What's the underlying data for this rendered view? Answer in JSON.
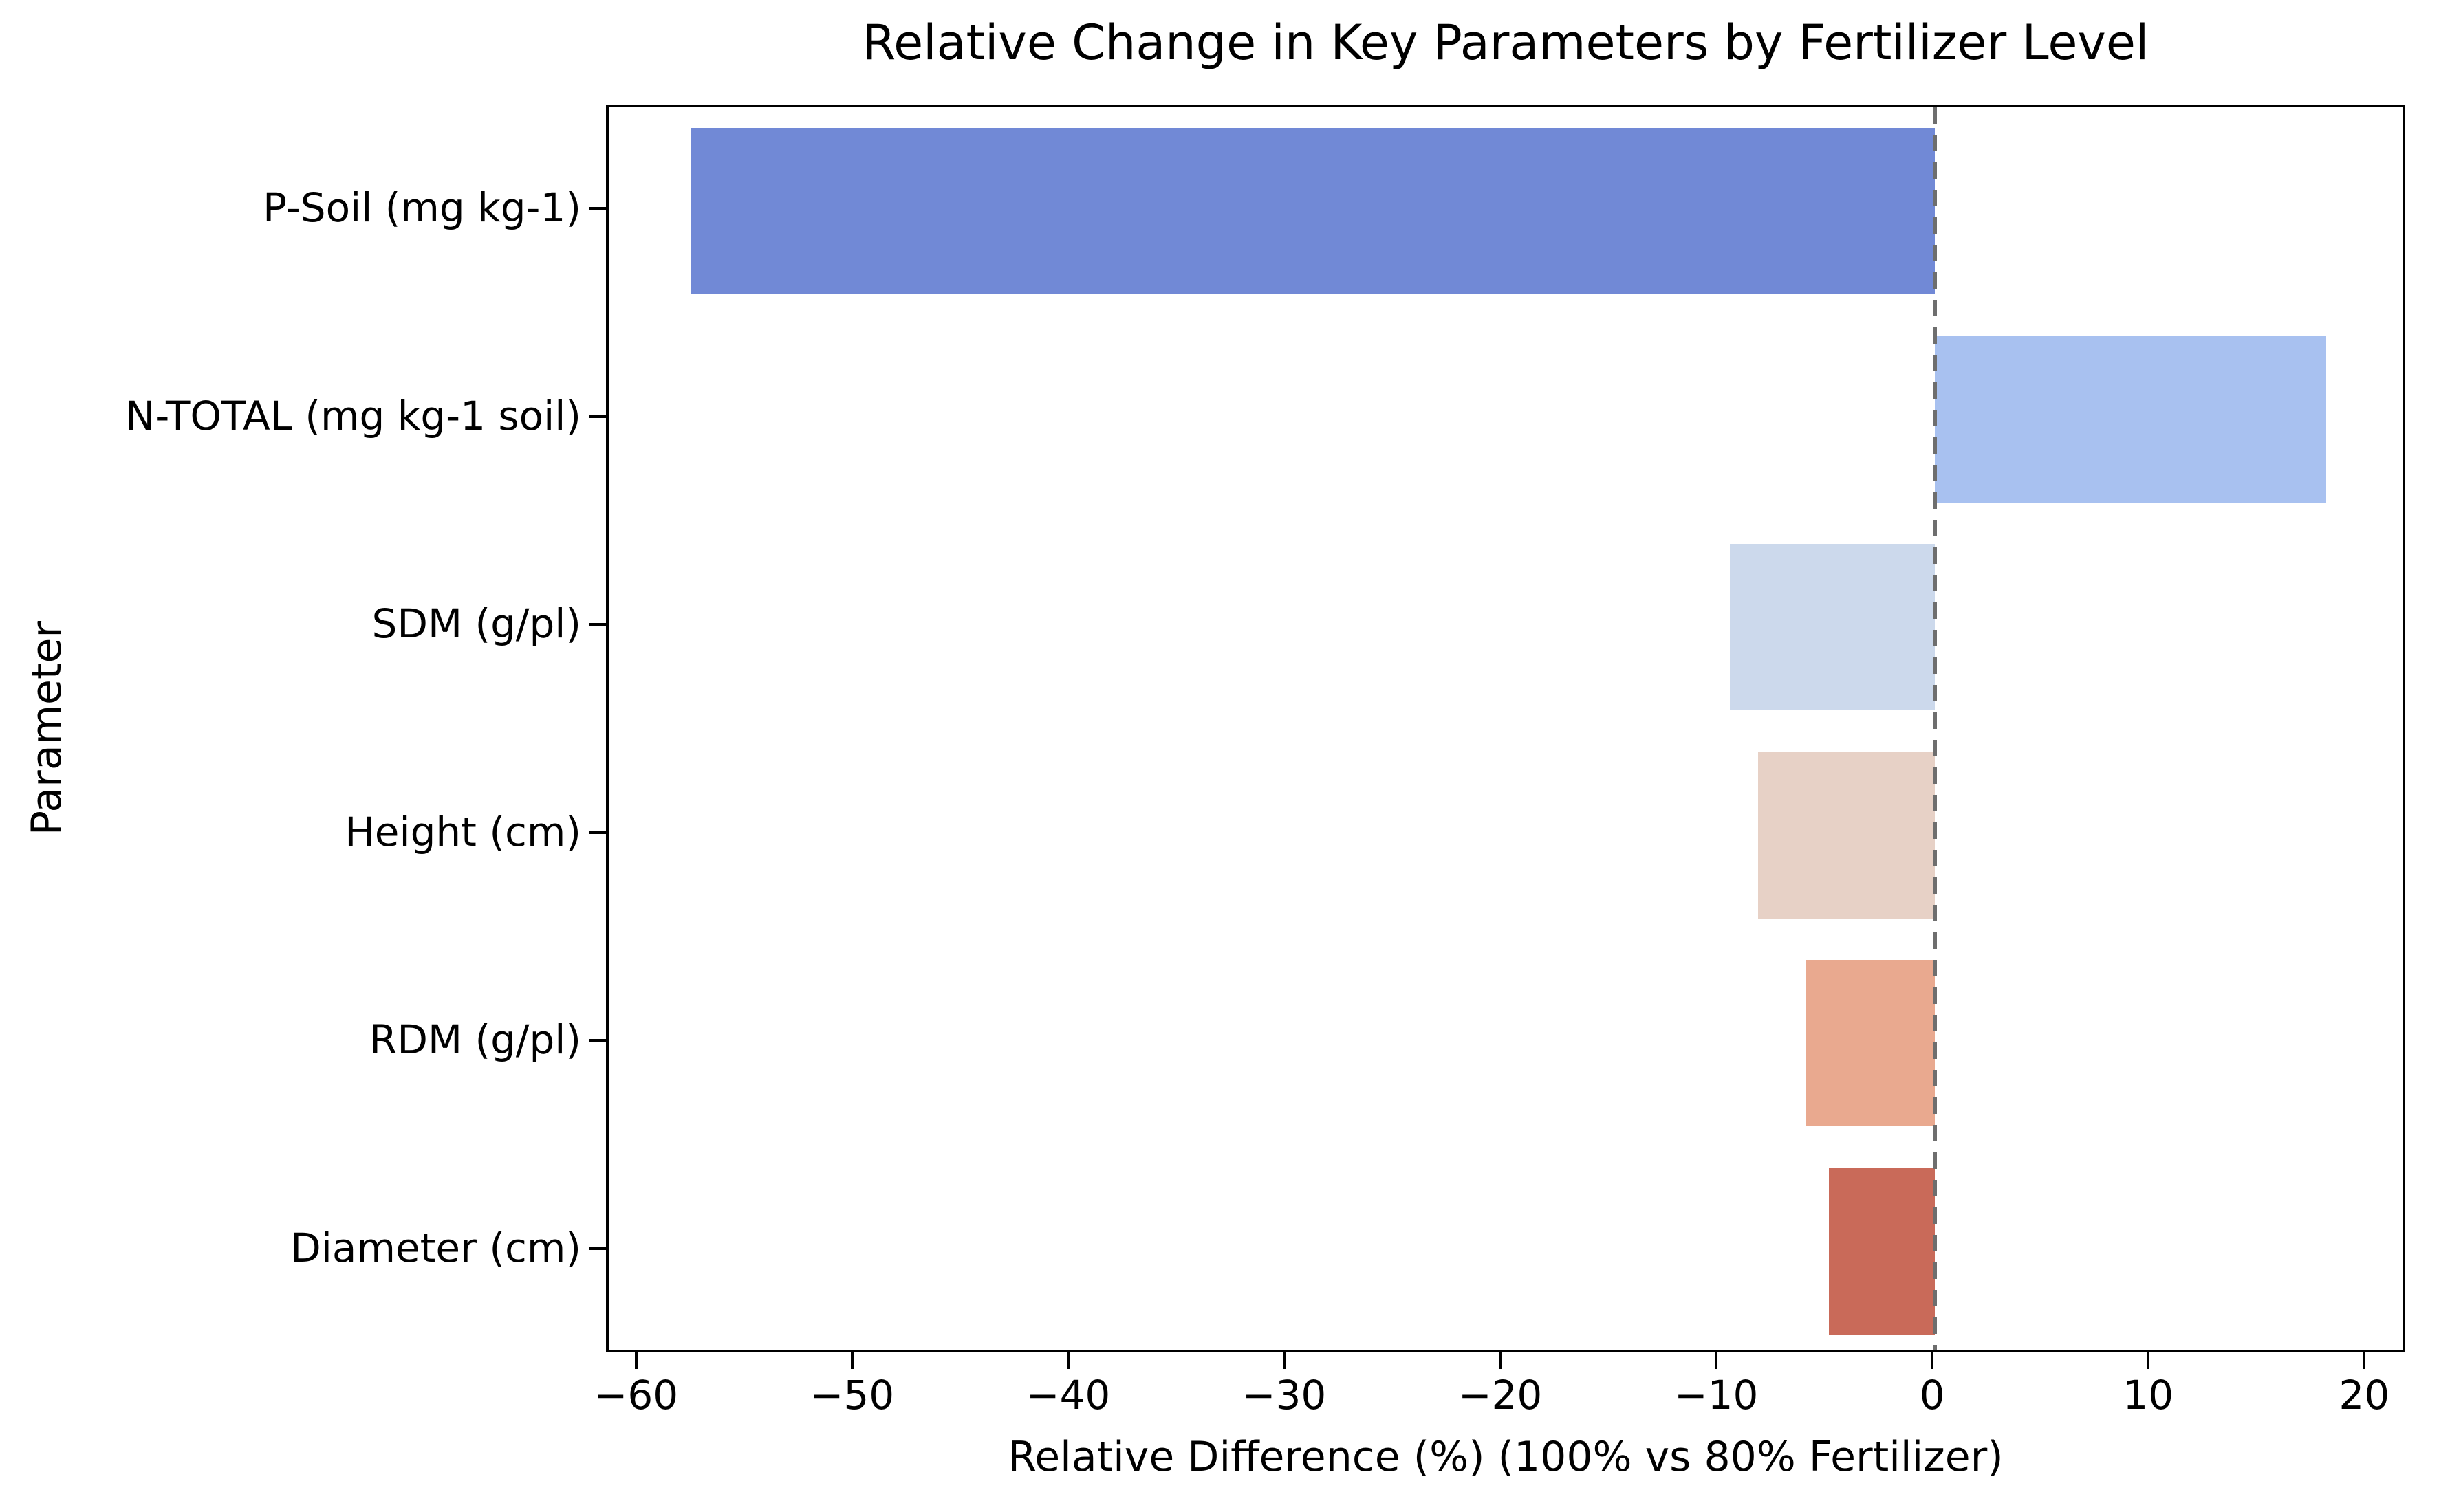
{
  "chart_data": {
    "type": "bar",
    "orientation": "horizontal",
    "title": "Relative Change in Key Parameters by Fertilizer Level",
    "xlabel": "Relative Difference (%) (100% vs 80% Fertilizer)",
    "ylabel": "Parameter",
    "categories": [
      "P-Soil (mg kg-1)",
      "N-TOTAL (mg kg-1 soil)",
      "SDM (g/pl)",
      "Height (cm)",
      "RDM (g/pl)",
      "Diameter (cm)"
    ],
    "values": [
      -57.6,
      18.1,
      -9.5,
      -8.2,
      -6.0,
      -4.9
    ],
    "bar_colors": [
      "#7189d6",
      "#a8c1f0",
      "#ccd9ec",
      "#e7d1c6",
      "#e9a98f",
      "#c96a59"
    ],
    "xlim": [
      -61.4,
      21.9
    ],
    "xticks": [
      -60,
      -50,
      -40,
      -30,
      -20,
      -10,
      0,
      10,
      20
    ],
    "xtick_labels": [
      "−60",
      "−50",
      "−40",
      "−30",
      "−20",
      "−10",
      "0",
      "10",
      "20"
    ],
    "zero_line": {
      "x": 0,
      "style": "dashed",
      "color": "#6e6e6e"
    },
    "grid": false,
    "legend": null
  },
  "colors": {
    "background": "#ffffff",
    "spine": "#000000",
    "text": "#000000"
  }
}
